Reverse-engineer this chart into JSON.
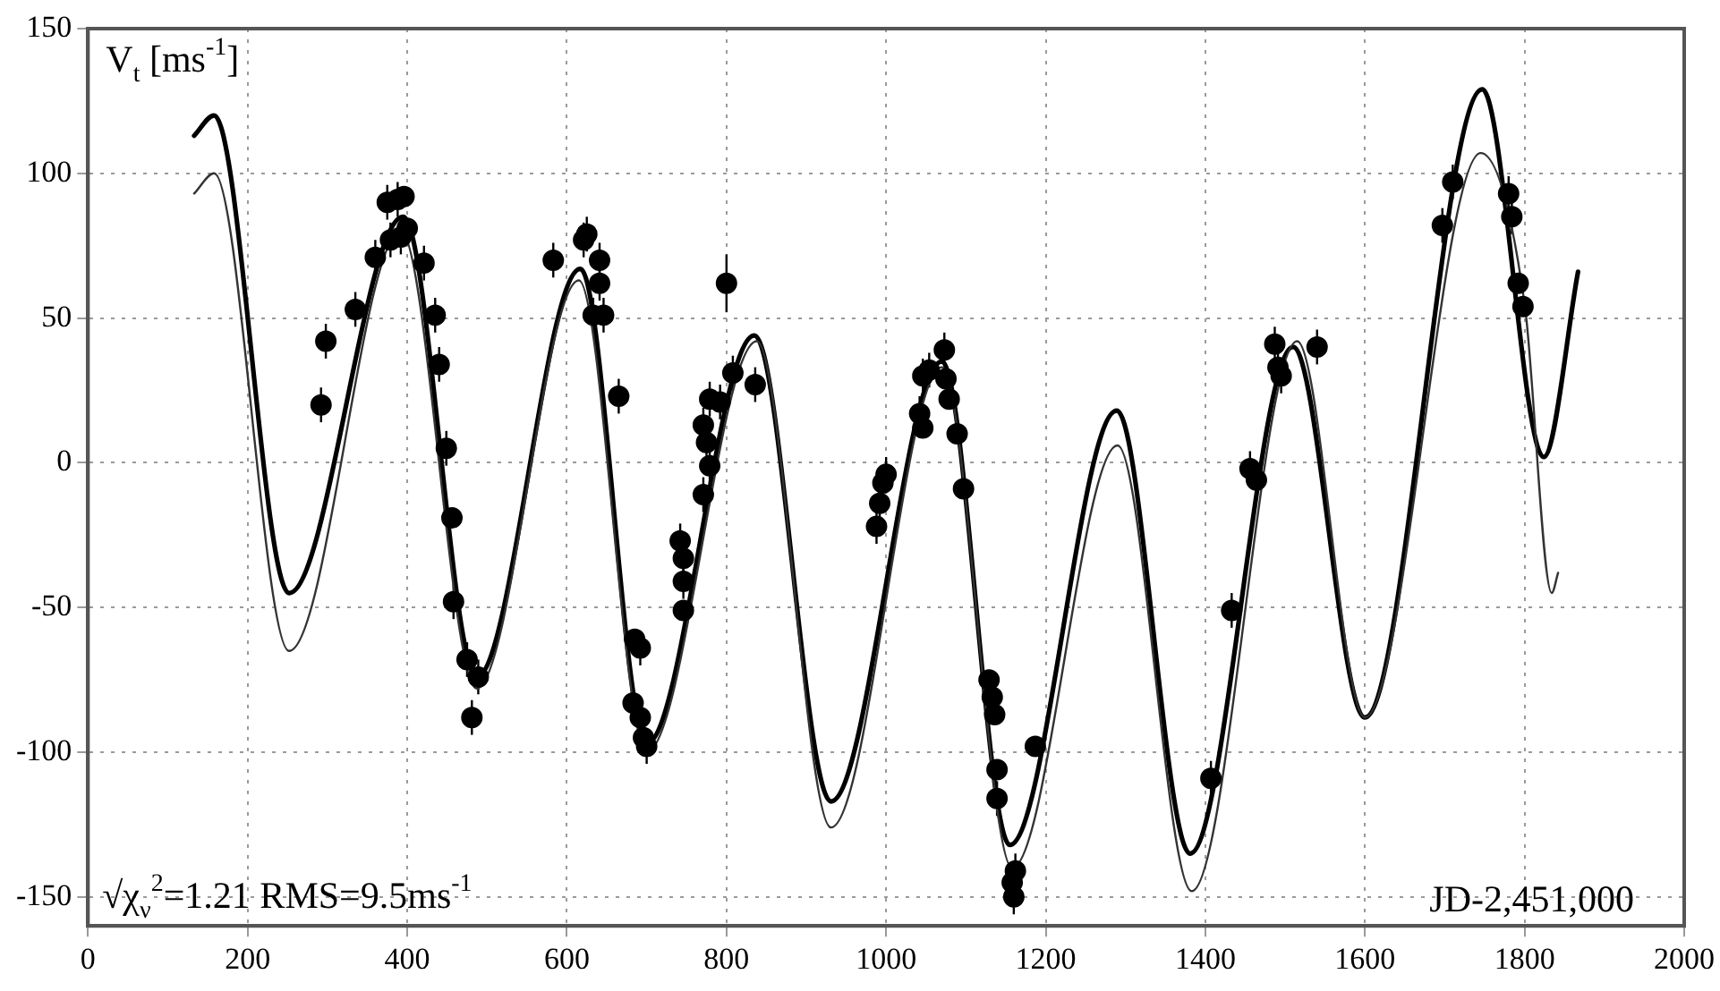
{
  "chart_data": {
    "type": "scatter",
    "xlabel": "JD-2,451,000",
    "ylabel": "V$_{t}$ [ms$^{-1}$]",
    "annotations": [
      "√χ$_{ν}$$^{2}$=1.21 RMS=9.5ms$^{-1}$"
    ],
    "xlim": [
      0,
      2000
    ],
    "xticks": [
      0,
      200,
      400,
      600,
      800,
      1000,
      1200,
      1400,
      1600,
      1800,
      2000
    ],
    "ylim": [
      -160,
      150
    ],
    "yticks": [
      -150,
      -100,
      -50,
      0,
      50,
      100,
      150
    ],
    "grid": true,
    "legend": false,
    "series": [
      {
        "color": "#000000",
        "marker": "circle",
        "x": [
          292,
          298,
          335,
          360,
          375,
          379,
          388,
          392,
          396,
          400,
          421,
          435,
          440,
          449,
          456,
          458,
          475,
          481,
          489,
          583,
          621,
          625,
          633,
          641,
          641,
          646,
          665,
          683,
          685,
          692,
          692,
          696,
          700,
          742,
          746,
          746,
          746,
          771,
          771,
          775,
          779,
          779,
          792,
          800,
          808,
          836,
          988,
          992,
          996,
          1000,
          1042,
          1046,
          1046,
          1054,
          1073,
          1075,
          1079,
          1089,
          1097,
          1129,
          1133,
          1136,
          1139,
          1139,
          1158,
          1160,
          1162,
          1187,
          1407,
          1433,
          1456,
          1464,
          1487,
          1491,
          1495,
          1540,
          1697,
          1710,
          1780,
          1784,
          1792,
          1798
        ],
        "values": [
          20,
          42,
          53,
          71,
          90,
          77,
          91,
          78,
          92,
          81,
          69,
          51,
          34,
          5,
          -19,
          -48,
          -68,
          -88,
          -74,
          70,
          77,
          79,
          51,
          70,
          62,
          51,
          23,
          -83,
          -61,
          -64,
          -88,
          -95,
          -98,
          -27,
          -33,
          -41,
          -51,
          13,
          -11,
          7,
          -1,
          22,
          21,
          62,
          31,
          27,
          -22,
          -14,
          -7,
          -4,
          17,
          12,
          30,
          32,
          39,
          29,
          22,
          10,
          -9,
          -75,
          -81,
          -87,
          -106,
          -116,
          -145,
          -150,
          -141,
          -98,
          -109,
          -51,
          -2,
          -6,
          41,
          33,
          30,
          40,
          82,
          97,
          93,
          85,
          62,
          54
        ],
        "errors": [
          6,
          6,
          6,
          6,
          6,
          6,
          6,
          6,
          null,
          null,
          6,
          6,
          6,
          6,
          null,
          6,
          6,
          6,
          6,
          6,
          6,
          6,
          6,
          6,
          6,
          6,
          6,
          6,
          null,
          6,
          null,
          6,
          6,
          6,
          6,
          6,
          null,
          6,
          6,
          6,
          6,
          6,
          6,
          10,
          6,
          6,
          6,
          6,
          6,
          6,
          6,
          null,
          6,
          6,
          6,
          null,
          null,
          null,
          null,
          null,
          null,
          null,
          null,
          6,
          6,
          6,
          6,
          null,
          6,
          6,
          6,
          6,
          6,
          6,
          6,
          6,
          6,
          6,
          6,
          6,
          null,
          null
        ]
      },
      {
        "type": "line",
        "color": "#000000",
        "marker": "none",
        "x": [
          133,
          158,
          252,
          395,
          487,
          617,
          700,
          835,
          931,
          1070,
          1155,
          1289,
          1381,
          1510,
          1600,
          1747,
          1824,
          1867
        ],
        "values": [
          113,
          120,
          -45,
          85,
          -74,
          67,
          -97,
          44,
          -117,
          35,
          -132,
          18,
          -135,
          40,
          -88,
          129,
          2,
          66
        ]
      },
      {
        "type": "line",
        "color": "#333333",
        "marker": "none",
        "x": [
          133,
          158,
          252,
          392,
          487,
          615,
          700,
          838,
          931,
          1070,
          1158,
          1290,
          1383,
          1515,
          1600,
          1745,
          1800,
          1834,
          1842
        ],
        "values": [
          93,
          100,
          -65,
          80,
          -78,
          63,
          -100,
          42,
          -126,
          33,
          -140,
          6,
          -148,
          42,
          -88,
          107,
          55,
          -45,
          -38
        ]
      }
    ]
  }
}
